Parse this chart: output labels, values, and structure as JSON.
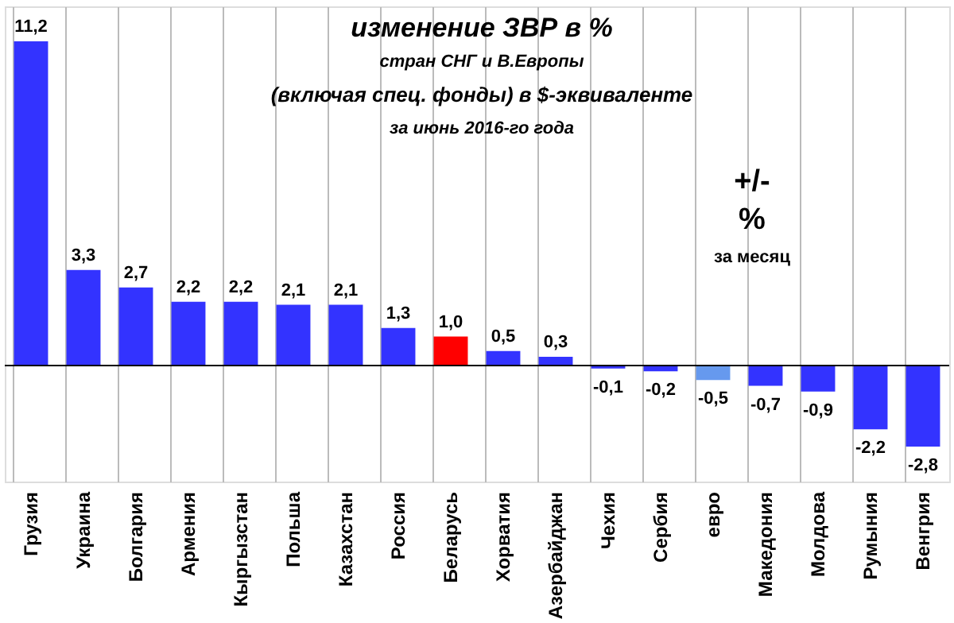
{
  "chart_data": {
    "type": "bar",
    "title": "изменение  ЗВР в %",
    "subtitle": [
      "стран СНГ и В.Европы",
      "(включая  спец. фонды) в $-эквиваленте",
      "за июнь 2016-го года"
    ],
    "annotations": [
      "+/-",
      "%",
      "за месяц"
    ],
    "categories": [
      "Грузия",
      "Украина",
      "Болгария",
      "Армения",
      "Кыргызстан",
      "Польша",
      "Казахстан",
      "Россия",
      "Беларусь",
      "Хорватия",
      "Азербайджан",
      "Чехия",
      "Сербия",
      "евро",
      "Македония",
      "Молдова",
      "Румыния",
      "Венгрия"
    ],
    "values": [
      11.2,
      3.3,
      2.7,
      2.2,
      2.2,
      2.1,
      2.1,
      1.3,
      1.0,
      0.5,
      0.3,
      -0.1,
      -0.2,
      -0.5,
      -0.7,
      -0.9,
      -2.2,
      -2.8
    ],
    "value_labels": [
      "11,2",
      "3,3",
      "2,7",
      "2,2",
      "2,2",
      "2,1",
      "2,1",
      "1,3",
      "1,0",
      "0,5",
      "0,3",
      "-0,1",
      "-0,2",
      "-0,5",
      "-0,7",
      "-0,9",
      "-2,2",
      "-2,8"
    ],
    "colors": [
      "#3333ff",
      "#3333ff",
      "#3333ff",
      "#3333ff",
      "#3333ff",
      "#3333ff",
      "#3333ff",
      "#3333ff",
      "#ff0000",
      "#3333ff",
      "#3333ff",
      "#3333ff",
      "#3333ff",
      "#6699ee",
      "#3333ff",
      "#3333ff",
      "#3333ff",
      "#3333ff"
    ],
    "grid": "x"
  }
}
